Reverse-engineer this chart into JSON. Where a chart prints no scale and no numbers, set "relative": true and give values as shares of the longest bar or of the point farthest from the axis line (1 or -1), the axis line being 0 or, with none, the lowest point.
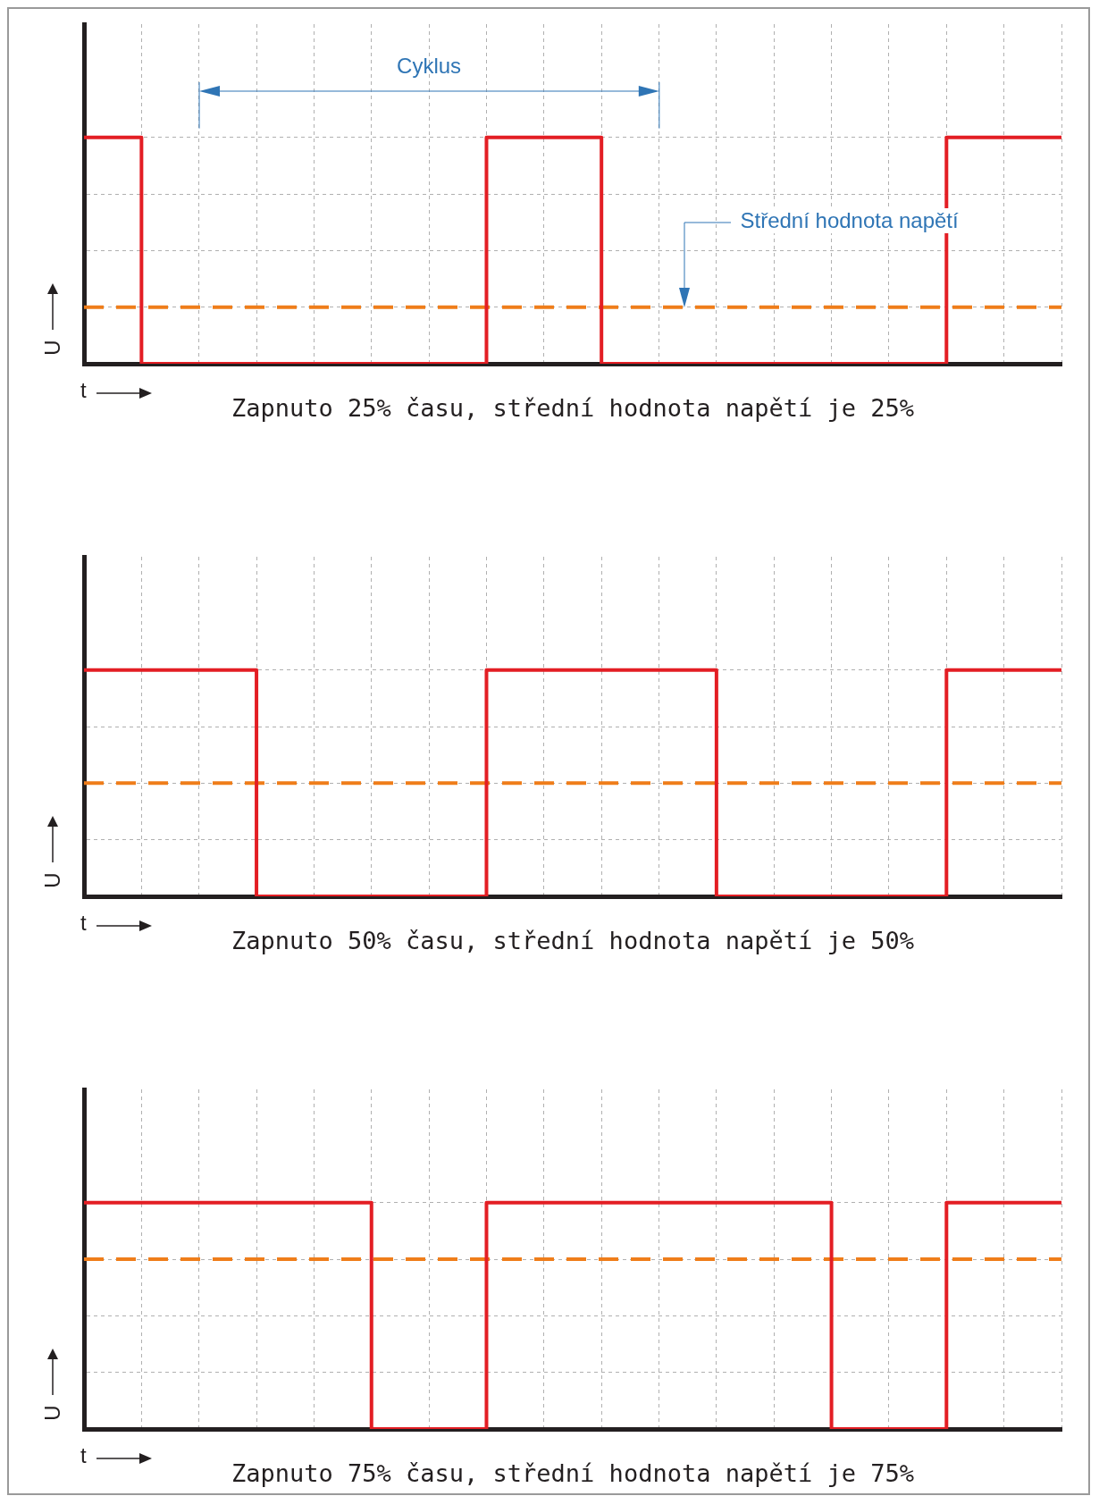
{
  "chart_data": [
    {
      "type": "step",
      "relative": true,
      "categories": [
        null,
        null,
        null,
        null,
        null,
        null,
        null,
        null,
        null,
        null,
        null,
        null,
        null,
        null,
        null,
        null,
        null,
        null
      ],
      "xlabel": "t",
      "ylabel": "U",
      "grid": true,
      "tick_labels": false,
      "legend": false,
      "line_style": "solid",
      "series": [
        {
          "color": "#e31e24",
          "values": [
            1,
            1,
            0,
            0,
            0,
            0,
            0,
            0,
            1,
            1,
            0,
            0,
            0,
            0,
            0,
            0,
            1,
            1
          ]
        }
      ],
      "ref_lines": [
        {
          "axis": "y",
          "value": 0.25,
          "color": "#ef7d1a",
          "line_style": "dashed"
        }
      ],
      "annotations": [
        "Cyklus",
        "Střední hodnota napětí",
        "Zapnuto 25% času, střední hodnota napětí je 25%"
      ]
    },
    {
      "type": "step",
      "relative": true,
      "categories": [
        null,
        null,
        null,
        null,
        null,
        null,
        null,
        null,
        null,
        null,
        null,
        null,
        null,
        null,
        null,
        null,
        null,
        null
      ],
      "xlabel": "t",
      "ylabel": "U",
      "grid": true,
      "tick_labels": false,
      "legend": false,
      "line_style": "solid",
      "series": [
        {
          "color": "#e31e24",
          "values": [
            1,
            1,
            1,
            1,
            0,
            0,
            0,
            0,
            1,
            1,
            1,
            1,
            0,
            0,
            0,
            0,
            1,
            1
          ]
        }
      ],
      "ref_lines": [
        {
          "axis": "y",
          "value": 0.5,
          "color": "#ef7d1a",
          "line_style": "dashed"
        }
      ],
      "annotations": [
        "Zapnuto 50% času, střední hodnota napětí je 50%"
      ]
    },
    {
      "type": "step",
      "relative": true,
      "categories": [
        null,
        null,
        null,
        null,
        null,
        null,
        null,
        null,
        null,
        null,
        null,
        null,
        null,
        null,
        null,
        null,
        null,
        null
      ],
      "xlabel": "t",
      "ylabel": "U",
      "grid": true,
      "tick_labels": false,
      "legend": false,
      "line_style": "solid",
      "series": [
        {
          "color": "#e31e24",
          "values": [
            1,
            1,
            1,
            1,
            1,
            1,
            0,
            0,
            1,
            1,
            1,
            1,
            1,
            1,
            0,
            0,
            1,
            1
          ]
        }
      ],
      "ref_lines": [
        {
          "axis": "y",
          "value": 0.75,
          "color": "#ef7d1a",
          "line_style": "dashed"
        }
      ],
      "annotations": [
        "Zapnuto 75% času, střední hodnota napětí je 75%"
      ]
    }
  ]
}
